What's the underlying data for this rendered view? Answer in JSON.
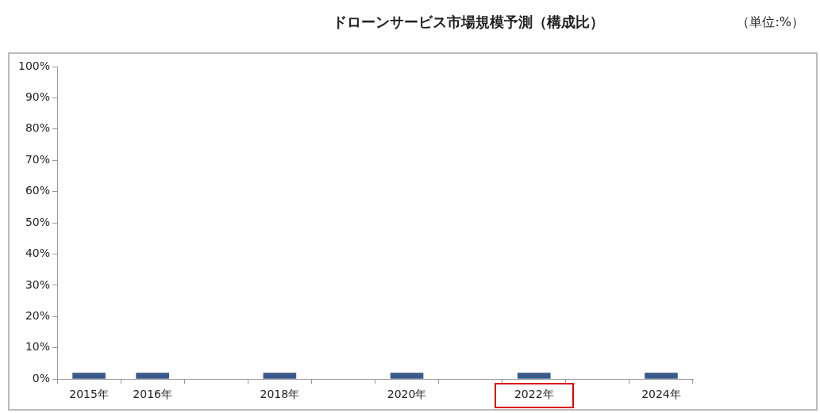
{
  "chart_data": {
    "type": "bar",
    "title": "ドローンサービス市場規模予測（構成比）",
    "annotations": [
      "（単位:%）"
    ],
    "categories": [
      "2015年",
      "2016年",
      null,
      "2018年",
      null,
      "2020年",
      null,
      "2022年",
      null,
      "2024年"
    ],
    "values": [
      2,
      2,
      null,
      2,
      null,
      2,
      null,
      2,
      null,
      2
    ],
    "color": "#3b5a8a",
    "ylim": [
      0,
      100
    ],
    "yticks": [
      {
        "value": 0,
        "label": "0%"
      },
      {
        "value": 10,
        "label": "10%"
      },
      {
        "value": 20,
        "label": "20%"
      },
      {
        "value": 30,
        "label": "30%"
      },
      {
        "value": 40,
        "label": "40%"
      },
      {
        "value": 50,
        "label": "50%"
      },
      {
        "value": 60,
        "label": "60%"
      },
      {
        "value": 70,
        "label": "70%"
      },
      {
        "value": 80,
        "label": "80%"
      },
      {
        "value": 90,
        "label": "90%"
      },
      {
        "value": 100,
        "label": "100%"
      }
    ],
    "grid": false,
    "legend": false
  }
}
